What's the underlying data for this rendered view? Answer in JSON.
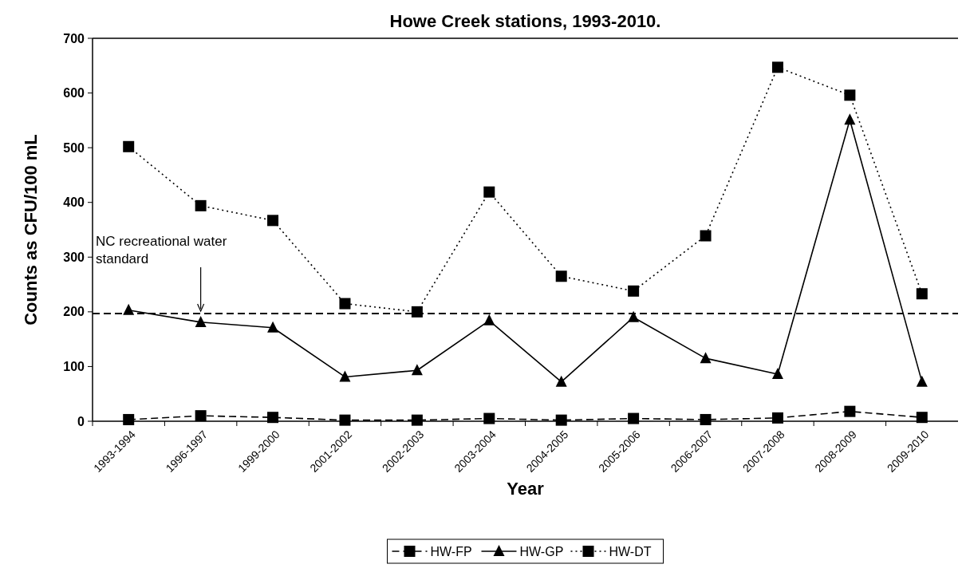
{
  "chart_data": {
    "type": "line",
    "title": "Howe Creek stations, 1993-2010.",
    "xlabel": "Year",
    "ylabel": "Counts as CFU/100 mL",
    "categories": [
      "1993-1994",
      "1996-1997",
      "1999-2000",
      "2001-2002",
      "2002-2003",
      "2003-2004",
      "2004-2005",
      "2005-2006",
      "2006-2007",
      "2007-2008",
      "2008-2009",
      "2009-2010"
    ],
    "series": [
      {
        "name": "HW-FP",
        "color": "#000000",
        "marker": "square",
        "line_style": "dashed",
        "values": [
          3,
          10,
          7,
          2,
          2,
          5,
          2,
          5,
          3,
          6,
          18,
          7
        ]
      },
      {
        "name": "HW-GP",
        "color": "#000000",
        "marker": "triangle",
        "line_style": "solid",
        "values": [
          203,
          181,
          171,
          81,
          93,
          184,
          72,
          190,
          115,
          86,
          551,
          72
        ]
      },
      {
        "name": "HW-DT",
        "color": "#000000",
        "marker": "square",
        "line_style": "dotted",
        "values": [
          502,
          394,
          367,
          215,
          200,
          419,
          265,
          238,
          339,
          647,
          596,
          233
        ]
      }
    ],
    "ylim": [
      0,
      700
    ],
    "yticks": [
      0,
      100,
      200,
      300,
      400,
      500,
      600,
      700
    ],
    "ref_lines": [
      {
        "axis": "y",
        "value": 197,
        "color": "#000000",
        "line_style": "dashed"
      }
    ],
    "annotations": [
      "NC recreational water standard"
    ],
    "legend": "bottom",
    "grid": false
  }
}
